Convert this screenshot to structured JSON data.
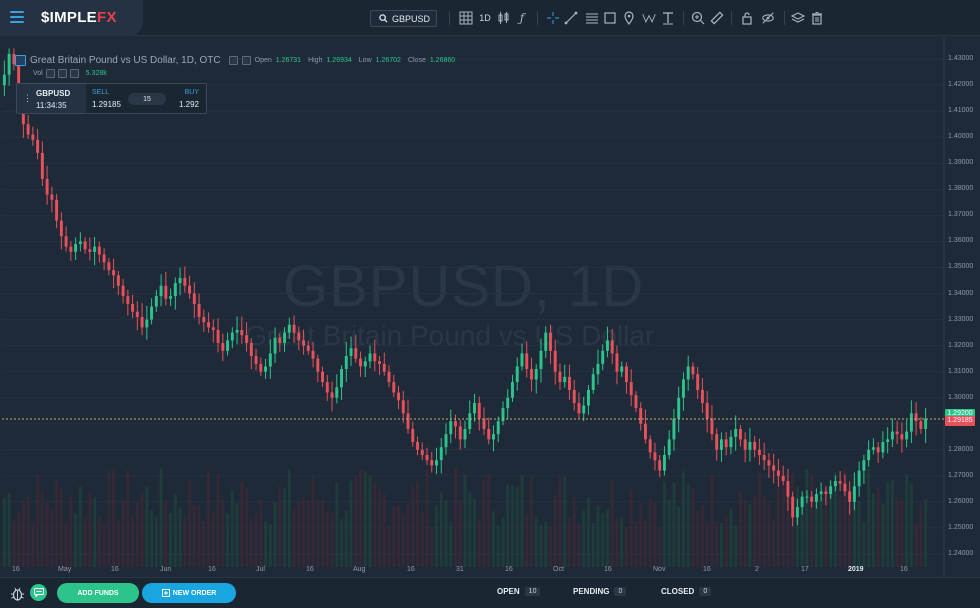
{
  "brand": {
    "name_main": "$IMPLE",
    "name_accent": "FX"
  },
  "toolbar": {
    "symbol": "GBPUSD",
    "timeframe": "1D"
  },
  "chart": {
    "title": "Great Britain Pound vs US Dollar, 1D, OTC",
    "watermark_title": "GBPUSD, 1D",
    "watermark_subtitle": "Great Britain Pound vs US Dollar",
    "ohlc": {
      "open_label": "Open",
      "open": "1.26731",
      "high_label": "High",
      "high": "1.26934",
      "low_label": "Low",
      "low": "1.26702",
      "close_label": "Close",
      "close": "1.26860"
    },
    "volume_label": "Vol",
    "volume_value": "5.328k"
  },
  "trade_widget": {
    "symbol": "GBPUSD",
    "time": "11:34:35",
    "sell_label": "SELL",
    "sell_price": "1.29185",
    "spread": "15",
    "buy_label": "BUY",
    "buy_price": "1.292"
  },
  "colors": {
    "bull": "#2dc48c",
    "bear": "#e8505a",
    "background": "#1e2a38",
    "accent": "#19a6e0"
  },
  "chart_data": {
    "type": "candlestick",
    "title": "Great Britain Pound vs US Dollar, 1D, OTC",
    "ylim": [
      1.235,
      1.4385
    ],
    "y_ticks": [
      "1.24000",
      "1.25000",
      "1.26000",
      "1.27000",
      "1.28000",
      "1.29000",
      "1.30000",
      "1.31000",
      "1.32000",
      "1.33000",
      "1.34000",
      "1.35000",
      "1.36000",
      "1.37000",
      "1.38000",
      "1.39000",
      "1.40000",
      "1.41000",
      "1.42000",
      "1.43000"
    ],
    "x_ticks": [
      "16",
      "May",
      "16",
      "Jun",
      "16",
      "Jul",
      "16",
      "Aug",
      "16",
      "31",
      "16",
      "Oct",
      "16",
      "Nov",
      "16",
      "2",
      "17",
      "2019",
      "16"
    ],
    "bold_x_tick": "2019",
    "current_buy": "1.29200",
    "current_sell": "1.29185",
    "close_path": [
      1.424,
      1.432,
      1.428,
      1.412,
      1.405,
      1.401,
      1.399,
      1.394,
      1.384,
      1.378,
      1.376,
      1.368,
      1.362,
      1.358,
      1.356,
      1.359,
      1.36,
      1.357,
      1.356,
      1.358,
      1.355,
      1.352,
      1.349,
      1.347,
      1.343,
      1.339,
      1.336,
      1.333,
      1.331,
      1.327,
      1.33,
      1.335,
      1.339,
      1.343,
      1.338,
      1.339,
      1.344,
      1.346,
      1.343,
      1.34,
      1.336,
      1.331,
      1.329,
      1.327,
      1.326,
      1.321,
      1.318,
      1.322,
      1.325,
      1.326,
      1.324,
      1.321,
      1.316,
      1.313,
      1.31,
      1.312,
      1.317,
      1.323,
      1.321,
      1.325,
      1.328,
      1.325,
      1.322,
      1.32,
      1.318,
      1.315,
      1.31,
      1.306,
      1.302,
      1.3,
      1.304,
      1.311,
      1.316,
      1.319,
      1.315,
      1.312,
      1.314,
      1.317,
      1.314,
      1.313,
      1.31,
      1.306,
      1.302,
      1.299,
      1.294,
      1.288,
      1.283,
      1.28,
      1.278,
      1.276,
      1.274,
      1.276,
      1.281,
      1.286,
      1.291,
      1.289,
      1.284,
      1.288,
      1.294,
      1.298,
      1.292,
      1.288,
      1.284,
      1.286,
      1.291,
      1.296,
      1.3,
      1.306,
      1.312,
      1.317,
      1.311,
      1.307,
      1.311,
      1.318,
      1.325,
      1.318,
      1.31,
      1.306,
      1.308,
      1.303,
      1.298,
      1.294,
      1.297,
      1.303,
      1.309,
      1.313,
      1.318,
      1.322,
      1.317,
      1.31,
      1.312,
      1.306,
      1.301,
      1.296,
      1.29,
      1.284,
      1.279,
      1.276,
      1.272,
      1.278,
      1.284,
      1.292,
      1.3,
      1.307,
      1.312,
      1.309,
      1.303,
      1.298,
      1.292,
      1.286,
      1.28,
      1.284,
      1.281,
      1.285,
      1.288,
      1.284,
      1.28,
      1.283,
      1.28,
      1.278,
      1.276,
      1.274,
      1.272,
      1.27,
      1.268,
      1.262,
      1.254,
      1.258,
      1.262,
      1.262,
      1.26,
      1.263,
      1.264,
      1.263,
      1.266,
      1.268,
      1.267,
      1.264,
      1.26,
      1.266,
      1.272,
      1.276,
      1.28,
      1.281,
      1.279,
      1.283,
      1.284,
      1.287,
      1.286,
      1.284,
      1.287,
      1.294,
      1.291,
      1.288,
      1.292
    ]
  },
  "bottombar": {
    "add_funds": "ADD FUNDS",
    "new_order": "NEW ORDER",
    "open_label": "OPEN",
    "open_count": "10",
    "pending_label": "PENDING",
    "pending_count": "0",
    "closed_label": "CLOSED",
    "closed_count": "0"
  }
}
